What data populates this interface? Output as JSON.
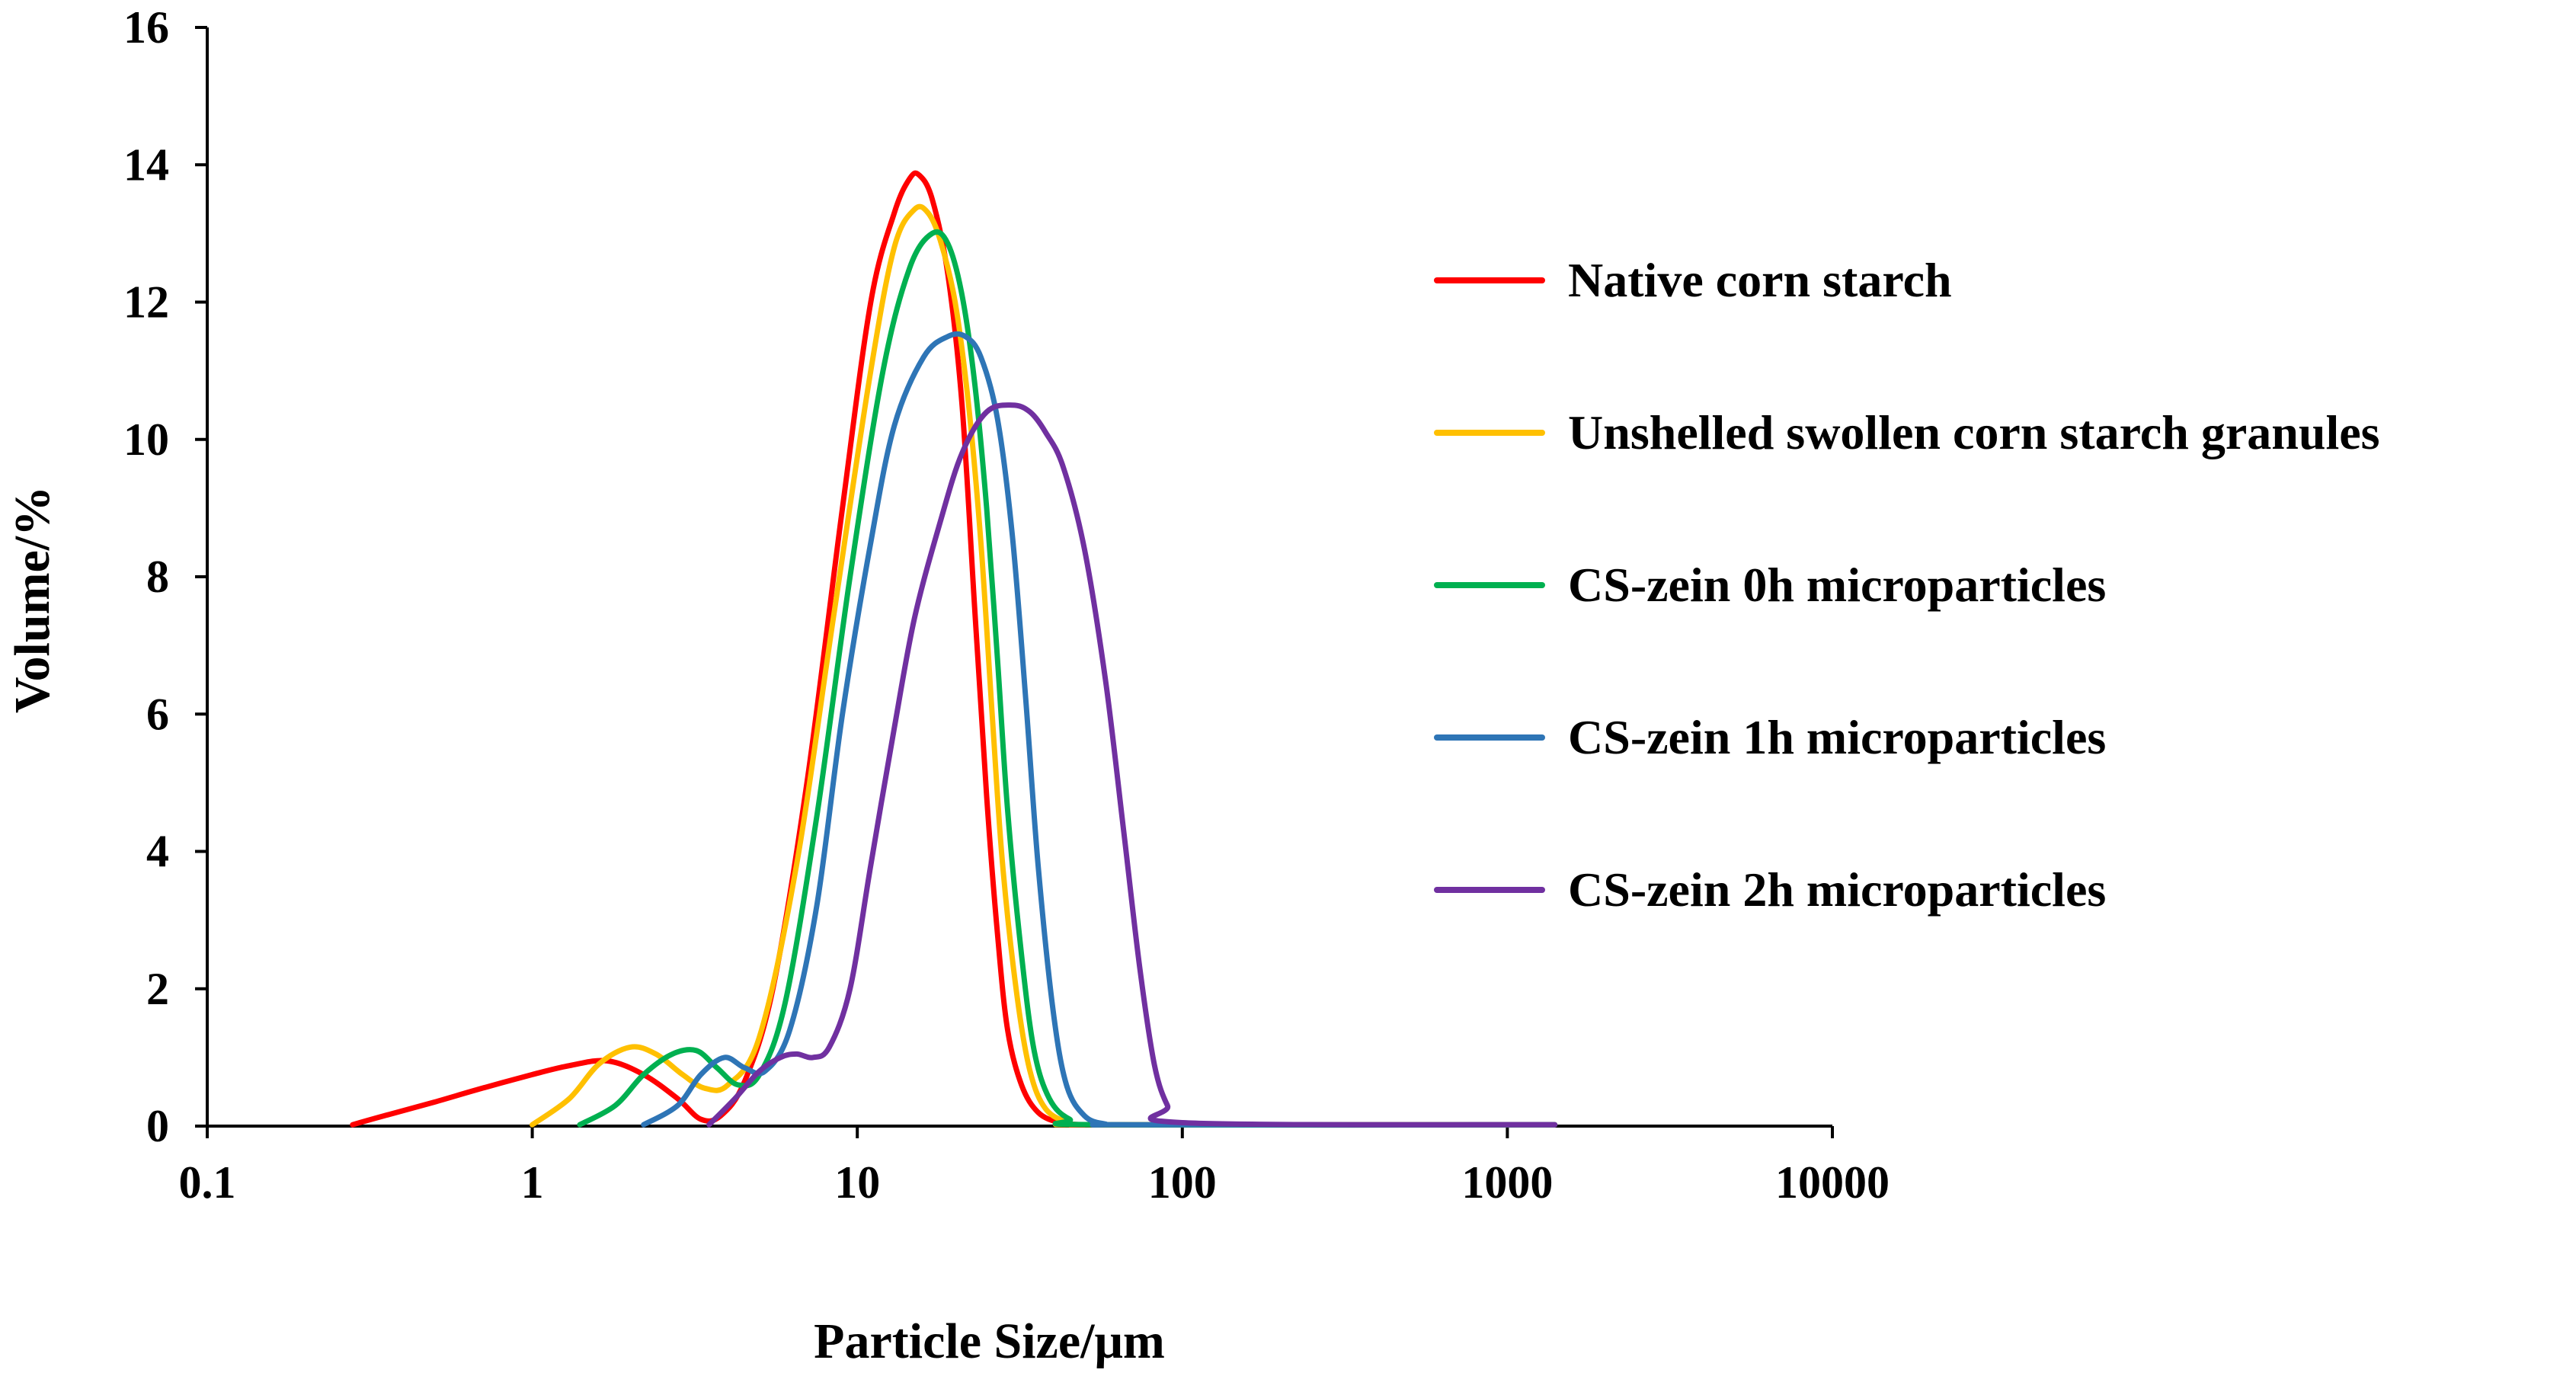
{
  "chart_data": {
    "type": "line",
    "title": "",
    "xlabel": "Particle Size/μm",
    "ylabel": "Volume/%",
    "xscale": "log",
    "xlim": [
      0.1,
      10000
    ],
    "ylim": [
      0,
      16
    ],
    "xticks": [
      {
        "value": 0.1,
        "label": "0.1"
      },
      {
        "value": 1,
        "label": "1"
      },
      {
        "value": 10,
        "label": "10"
      },
      {
        "value": 100,
        "label": "100"
      },
      {
        "value": 1000,
        "label": "1000"
      },
      {
        "value": 10000,
        "label": "10000"
      }
    ],
    "yticks": [
      {
        "value": 0,
        "label": "0"
      },
      {
        "value": 2,
        "label": "2"
      },
      {
        "value": 4,
        "label": "4"
      },
      {
        "value": 6,
        "label": "6"
      },
      {
        "value": 8,
        "label": "8"
      },
      {
        "value": 10,
        "label": "10"
      },
      {
        "value": 12,
        "label": "12"
      },
      {
        "value": 14,
        "label": "14"
      },
      {
        "value": 16,
        "label": "16"
      }
    ],
    "grid": false,
    "legend_position": "right",
    "series": [
      {
        "name": "Native corn starch",
        "color": "#ff0000",
        "x": [
          0.28,
          0.35,
          0.5,
          0.7,
          1.0,
          1.3,
          1.7,
          2.2,
          2.8,
          3.3,
          3.8,
          4.5,
          5.5,
          7,
          9,
          11,
          13,
          14.5,
          15.5,
          17,
          19,
          21,
          23,
          25,
          27,
          29,
          32,
          36,
          42,
          50,
          60,
          1400
        ],
        "y": [
          0.02,
          0.15,
          0.35,
          0.55,
          0.75,
          0.88,
          0.95,
          0.75,
          0.4,
          0.1,
          0.15,
          0.65,
          2.0,
          5.0,
          9.0,
          12.0,
          13.3,
          13.8,
          13.85,
          13.5,
          12.4,
          10.5,
          7.5,
          4.8,
          2.8,
          1.4,
          0.6,
          0.2,
          0.05,
          0.02,
          0.02,
          0.02
        ]
      },
      {
        "name": "Unshelled swollen corn starch granules",
        "color": "#ffc000",
        "x": [
          1.0,
          1.3,
          1.6,
          2.0,
          2.4,
          2.9,
          3.4,
          4.0,
          5.0,
          6.5,
          8.5,
          11,
          13,
          15,
          16.5,
          18,
          20,
          22,
          24,
          26,
          28,
          31,
          34,
          38,
          45,
          55,
          1400
        ],
        "y": [
          0.02,
          0.4,
          0.9,
          1.15,
          1.05,
          0.75,
          0.55,
          0.6,
          1.3,
          3.8,
          7.5,
          11.0,
          12.8,
          13.35,
          13.3,
          12.9,
          12.0,
          10.5,
          8.5,
          6.0,
          3.8,
          1.9,
          0.8,
          0.25,
          0.05,
          0.02,
          0.02
        ]
      },
      {
        "name": "CS-zein 0h microparticles",
        "color": "#00b050",
        "x": [
          1.4,
          1.8,
          2.2,
          2.7,
          3.2,
          3.7,
          4.3,
          5.0,
          6.0,
          7.5,
          9.5,
          12,
          14.5,
          17,
          19,
          21,
          23,
          25,
          27,
          29,
          32,
          35,
          39,
          45,
          55,
          1400
        ],
        "y": [
          0.02,
          0.3,
          0.75,
          1.05,
          1.1,
          0.85,
          0.6,
          0.75,
          1.8,
          4.5,
          8.0,
          11.0,
          12.5,
          13.0,
          12.85,
          12.1,
          10.8,
          9.0,
          6.8,
          4.6,
          2.5,
          1.1,
          0.4,
          0.1,
          0.02,
          0.02
        ]
      },
      {
        "name": "CS-zein 1h microparticles",
        "color": "#2e75b6",
        "x": [
          2.2,
          2.8,
          3.3,
          3.9,
          4.5,
          5.2,
          6.2,
          7.5,
          9.0,
          11,
          13,
          16,
          19,
          21.5,
          24,
          27,
          30,
          33,
          36,
          40,
          44,
          50,
          58,
          70,
          1400
        ],
        "y": [
          0.02,
          0.3,
          0.75,
          1.0,
          0.85,
          0.8,
          1.4,
          3.2,
          6.0,
          8.5,
          10.2,
          11.2,
          11.5,
          11.5,
          11.2,
          10.3,
          8.6,
          6.2,
          3.8,
          1.7,
          0.6,
          0.15,
          0.03,
          0.02,
          0.02
        ]
      },
      {
        "name": "CS-zein 2h microparticles",
        "color": "#7030a0",
        "x": [
          3.5,
          4.2,
          5.0,
          5.8,
          6.5,
          7.3,
          8.2,
          9.5,
          11,
          13,
          15,
          18,
          21,
          25,
          30,
          34,
          38,
          43,
          50,
          58,
          66,
          74,
          82,
          90,
          100,
          1400
        ],
        "y": [
          0.02,
          0.4,
          0.8,
          1.0,
          1.05,
          1.0,
          1.15,
          2.0,
          3.8,
          5.8,
          7.4,
          8.8,
          9.8,
          10.4,
          10.5,
          10.4,
          10.1,
          9.6,
          8.4,
          6.5,
          4.3,
          2.3,
          0.9,
          0.3,
          0.05,
          0.02
        ]
      }
    ]
  }
}
